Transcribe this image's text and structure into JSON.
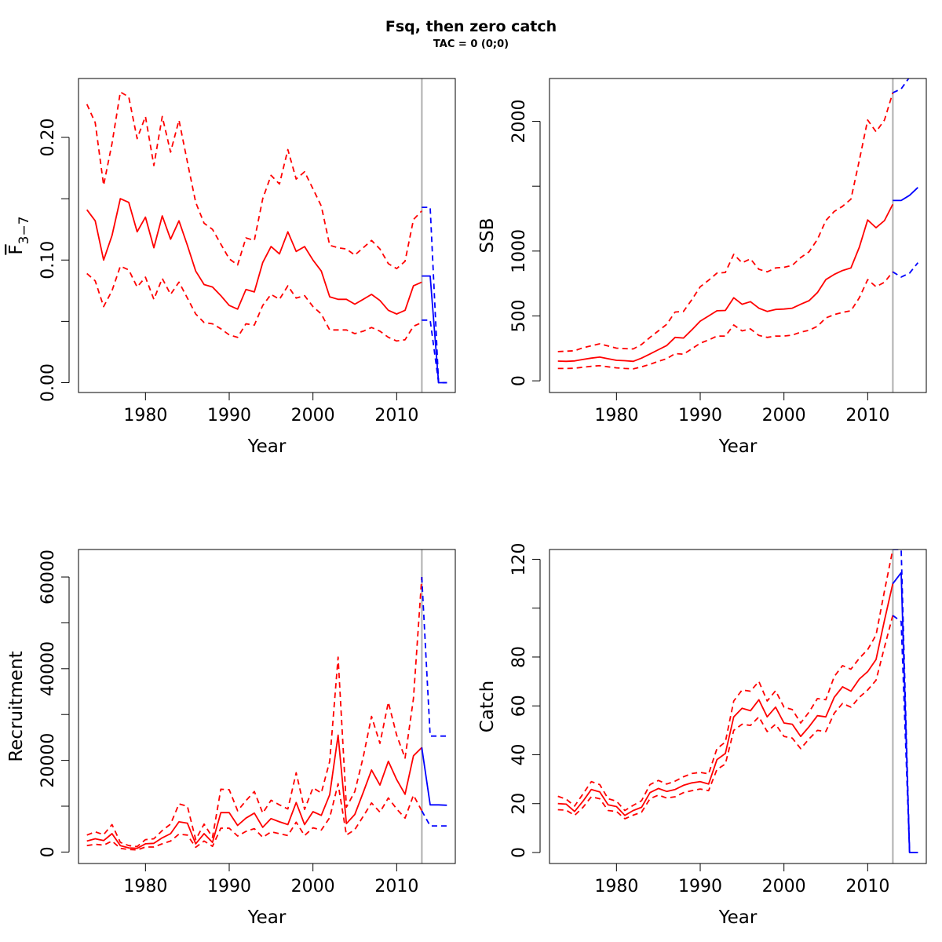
{
  "figure": {
    "title": "Fsq, then zero catch",
    "subtitle": "TAC = 0 (0;0)"
  },
  "colors": {
    "history": "#ff0000",
    "forecast": "#0000ff",
    "marker": "#bebebe"
  },
  "chart_data": [
    {
      "type": "line",
      "ylabel_main": "F",
      "ylabel_sub": "3−7",
      "xlabel": "Year",
      "xlim": [
        1972,
        2017
      ],
      "ylim": [
        -0.008,
        0.248
      ],
      "xticks": [
        1980,
        1990,
        2000,
        2010
      ],
      "yticks": [
        0.0,
        0.1,
        0.2
      ],
      "ytick_labels": [
        "0.00",
        "0.10",
        "0.20"
      ],
      "yminor": [
        0.05,
        0.15
      ],
      "vline": 2013,
      "history": {
        "x": [
          1973,
          1974,
          1975,
          1976,
          1977,
          1978,
          1979,
          1980,
          1981,
          1982,
          1983,
          1984,
          1985,
          1986,
          1987,
          1988,
          1989,
          1990,
          1991,
          1992,
          1993,
          1994,
          1995,
          1996,
          1997,
          1998,
          1999,
          2000,
          2001,
          2002,
          2003,
          2004,
          2005,
          2006,
          2007,
          2008,
          2009,
          2010,
          2011,
          2012,
          2013
        ],
        "median": [
          0.141,
          0.132,
          0.1,
          0.12,
          0.15,
          0.147,
          0.123,
          0.135,
          0.11,
          0.136,
          0.117,
          0.132,
          0.112,
          0.091,
          0.08,
          0.078,
          0.071,
          0.063,
          0.06,
          0.076,
          0.074,
          0.098,
          0.111,
          0.105,
          0.123,
          0.107,
          0.111,
          0.1,
          0.091,
          0.07,
          0.068,
          0.068,
          0.064,
          0.068,
          0.072,
          0.067,
          0.059,
          0.056,
          0.059,
          0.079,
          0.082
        ],
        "upper": [
          0.227,
          0.212,
          0.161,
          0.195,
          0.237,
          0.233,
          0.199,
          0.217,
          0.177,
          0.217,
          0.188,
          0.214,
          0.18,
          0.147,
          0.13,
          0.125,
          0.113,
          0.101,
          0.096,
          0.118,
          0.116,
          0.15,
          0.169,
          0.162,
          0.19,
          0.166,
          0.172,
          0.158,
          0.144,
          0.112,
          0.11,
          0.109,
          0.104,
          0.11,
          0.116,
          0.109,
          0.097,
          0.093,
          0.099,
          0.133,
          0.14
        ],
        "lower": [
          0.089,
          0.083,
          0.062,
          0.075,
          0.095,
          0.092,
          0.078,
          0.086,
          0.068,
          0.085,
          0.072,
          0.082,
          0.069,
          0.056,
          0.049,
          0.048,
          0.044,
          0.039,
          0.037,
          0.048,
          0.047,
          0.063,
          0.072,
          0.068,
          0.079,
          0.069,
          0.071,
          0.062,
          0.056,
          0.043,
          0.043,
          0.043,
          0.04,
          0.042,
          0.045,
          0.042,
          0.037,
          0.034,
          0.035,
          0.046,
          0.049
        ]
      },
      "forecast": {
        "x": [
          2013,
          2014,
          2015,
          2016
        ],
        "median": [
          0.087,
          0.087,
          0.0,
          0.0
        ],
        "upper": [
          0.143,
          0.143,
          0.0,
          0.0
        ],
        "lower": [
          0.051,
          0.051,
          0.0,
          0.0
        ]
      }
    },
    {
      "type": "line",
      "ylabel": "SSB",
      "xlabel": "Year",
      "xlim": [
        1972,
        2017
      ],
      "ylim": [
        -90,
        2330
      ],
      "xticks": [
        1980,
        1990,
        2000,
        2010
      ],
      "yticks": [
        0,
        500,
        1000,
        2000
      ],
      "ytick_labels": [
        "0",
        "500",
        "1000",
        "2000"
      ],
      "yminor": [
        1500
      ],
      "vline": 2013,
      "history": {
        "x": [
          1973,
          1974,
          1975,
          1976,
          1977,
          1978,
          1979,
          1980,
          1981,
          1982,
          1983,
          1984,
          1985,
          1986,
          1987,
          1988,
          1989,
          1990,
          1991,
          1992,
          1993,
          1994,
          1995,
          1996,
          1997,
          1998,
          1999,
          2000,
          2001,
          2002,
          2003,
          2004,
          2005,
          2006,
          2007,
          2008,
          2009,
          2010,
          2011,
          2012,
          2013
        ],
        "median": [
          152,
          150,
          153,
          165,
          175,
          183,
          170,
          158,
          155,
          150,
          175,
          207,
          240,
          272,
          335,
          330,
          393,
          460,
          500,
          540,
          542,
          640,
          590,
          610,
          560,
          535,
          550,
          553,
          560,
          590,
          618,
          680,
          780,
          820,
          850,
          870,
          1030,
          1240,
          1180,
          1235,
          1360
        ],
        "upper": [
          225,
          228,
          232,
          255,
          270,
          285,
          268,
          252,
          248,
          246,
          280,
          335,
          385,
          435,
          530,
          535,
          625,
          725,
          775,
          830,
          835,
          975,
          910,
          940,
          860,
          840,
          870,
          875,
          890,
          950,
          995,
          1090,
          1235,
          1305,
          1345,
          1400,
          1700,
          2010,
          1920,
          2010,
          2220
        ],
        "lower": [
          95,
          95,
          97,
          105,
          112,
          117,
          108,
          100,
          95,
          92,
          108,
          127,
          150,
          170,
          210,
          205,
          247,
          290,
          315,
          345,
          345,
          430,
          385,
          400,
          350,
          335,
          345,
          345,
          352,
          375,
          390,
          420,
          485,
          510,
          528,
          540,
          640,
          780,
          725,
          760,
          840
        ]
      },
      "forecast": {
        "x": [
          2013,
          2014,
          2015,
          2016
        ],
        "median": [
          1390,
          1390,
          1430,
          1490
        ],
        "upper": [
          2220,
          2250,
          2340,
          2460
        ],
        "lower": [
          840,
          800,
          830,
          910
        ]
      }
    },
    {
      "type": "line",
      "ylabel": "Recruitment",
      "xlabel": "Year",
      "xlim": [
        1972,
        2017
      ],
      "ylim": [
        -2500,
        66000
      ],
      "xticks": [
        1980,
        1990,
        2000,
        2010
      ],
      "yticks": [
        0,
        20000,
        40000,
        60000
      ],
      "ytick_labels": [
        "0",
        "20000",
        "40000",
        "60000"
      ],
      "yminor": [
        10000,
        30000,
        50000
      ],
      "vline": 2013,
      "history": {
        "x": [
          1973,
          1974,
          1975,
          1976,
          1977,
          1978,
          1979,
          1980,
          1981,
          1982,
          1983,
          1984,
          1985,
          1986,
          1987,
          1988,
          1989,
          1990,
          1991,
          1992,
          1993,
          1994,
          1995,
          1996,
          1997,
          1998,
          1999,
          2000,
          2001,
          2002,
          2003,
          2004,
          2005,
          2006,
          2007,
          2008,
          2009,
          2010,
          2011,
          2012,
          2013
        ],
        "median": [
          2400,
          2900,
          2500,
          4000,
          1400,
          900,
          800,
          1800,
          1900,
          3100,
          4000,
          6600,
          6300,
          1800,
          4000,
          2100,
          8600,
          8600,
          5800,
          7400,
          8500,
          5400,
          7300,
          6600,
          6000,
          10800,
          6000,
          8800,
          8000,
          12500,
          25500,
          6200,
          8200,
          13000,
          17900,
          14600,
          19800,
          15800,
          12600,
          21000,
          22800
        ],
        "upper": [
          3700,
          4400,
          3800,
          6000,
          2100,
          1400,
          1200,
          2700,
          2900,
          4700,
          6100,
          10500,
          10000,
          2700,
          6100,
          3200,
          13700,
          13600,
          9000,
          11200,
          13200,
          8500,
          11300,
          10300,
          9400,
          17300,
          9300,
          14000,
          12900,
          19800,
          42500,
          9800,
          13200,
          20700,
          29600,
          23700,
          32700,
          25500,
          20500,
          33500,
          60000
        ],
        "lower": [
          1400,
          1700,
          1500,
          2400,
          800,
          550,
          470,
          1100,
          1100,
          1800,
          2400,
          3900,
          3700,
          1050,
          2400,
          1250,
          5200,
          5200,
          3500,
          4500,
          5100,
          3200,
          4400,
          4000,
          3600,
          6500,
          3600,
          5300,
          4800,
          7500,
          14900,
          3700,
          4900,
          7800,
          10700,
          8700,
          11800,
          9400,
          7400,
          12400,
          9000
        ]
      },
      "forecast": {
        "x": [
          2013,
          2014,
          2015,
          2016
        ],
        "median": [
          22800,
          10300,
          10300,
          10200
        ],
        "upper": [
          60000,
          25300,
          25300,
          25300
        ],
        "lower": [
          9000,
          5700,
          5700,
          5700
        ]
      }
    },
    {
      "type": "line",
      "ylabel": "Catch",
      "xlabel": "Year",
      "xlim": [
        1972,
        2017
      ],
      "ylim": [
        -4.5,
        124
      ],
      "xticks": [
        1980,
        1990,
        2000,
        2010
      ],
      "yticks": [
        0,
        20,
        40,
        60,
        80,
        120
      ],
      "ytick_labels": [
        "0",
        "20",
        "40",
        "60",
        "80",
        "120"
      ],
      "yminor": [
        100
      ],
      "vline": 2013,
      "history": {
        "x": [
          1973,
          1974,
          1975,
          1976,
          1977,
          1978,
          1979,
          1980,
          1981,
          1982,
          1983,
          1984,
          1985,
          1986,
          1987,
          1988,
          1989,
          1990,
          1991,
          1992,
          1993,
          1994,
          1995,
          1996,
          1997,
          1998,
          1999,
          2000,
          2001,
          2002,
          2003,
          2004,
          2005,
          2006,
          2007,
          2008,
          2009,
          2010,
          2011,
          2012,
          2013
        ],
        "median": [
          20,
          19.8,
          16.8,
          21,
          25.8,
          24.8,
          19.5,
          18.8,
          15.2,
          17.2,
          18.5,
          24.5,
          26.2,
          25,
          25.8,
          27.5,
          28.5,
          29,
          28,
          38,
          40.5,
          55.5,
          59,
          58,
          62.5,
          55.5,
          59.5,
          53,
          52.5,
          47.5,
          51.5,
          56,
          55.5,
          63.5,
          67.8,
          66,
          71,
          74,
          79,
          95,
          110
        ],
        "upper": [
          23,
          21.8,
          19,
          24,
          29,
          27.8,
          22,
          21,
          17.2,
          19.3,
          21.2,
          27.8,
          29.5,
          28,
          29.2,
          31,
          32.3,
          32.8,
          32.2,
          42.5,
          45.2,
          62,
          66.5,
          66,
          70,
          62,
          66.2,
          59.5,
          58.5,
          53,
          57.5,
          63,
          62.5,
          72,
          76.5,
          75,
          79.5,
          83,
          89,
          107,
          124
        ],
        "lower": [
          17.5,
          17.3,
          15.2,
          18.5,
          22.8,
          22,
          17.2,
          16.8,
          13.8,
          15.3,
          16.5,
          22,
          23.5,
          22.3,
          22.8,
          24.5,
          25.3,
          26,
          25.3,
          34,
          36.2,
          50,
          52.5,
          52,
          55.5,
          49.5,
          52.5,
          47.5,
          46.8,
          42.5,
          46.5,
          50,
          49.5,
          57,
          61,
          59.5,
          63.5,
          66.5,
          70.5,
          84,
          97
        ]
      },
      "forecast": {
        "x": [
          2013,
          2014,
          2015,
          2016
        ],
        "median": [
          110,
          114.5,
          0,
          0
        ],
        "upper": [
          124,
          124,
          0,
          0
        ],
        "lower": [
          97,
          94.5,
          0,
          0
        ]
      }
    }
  ]
}
